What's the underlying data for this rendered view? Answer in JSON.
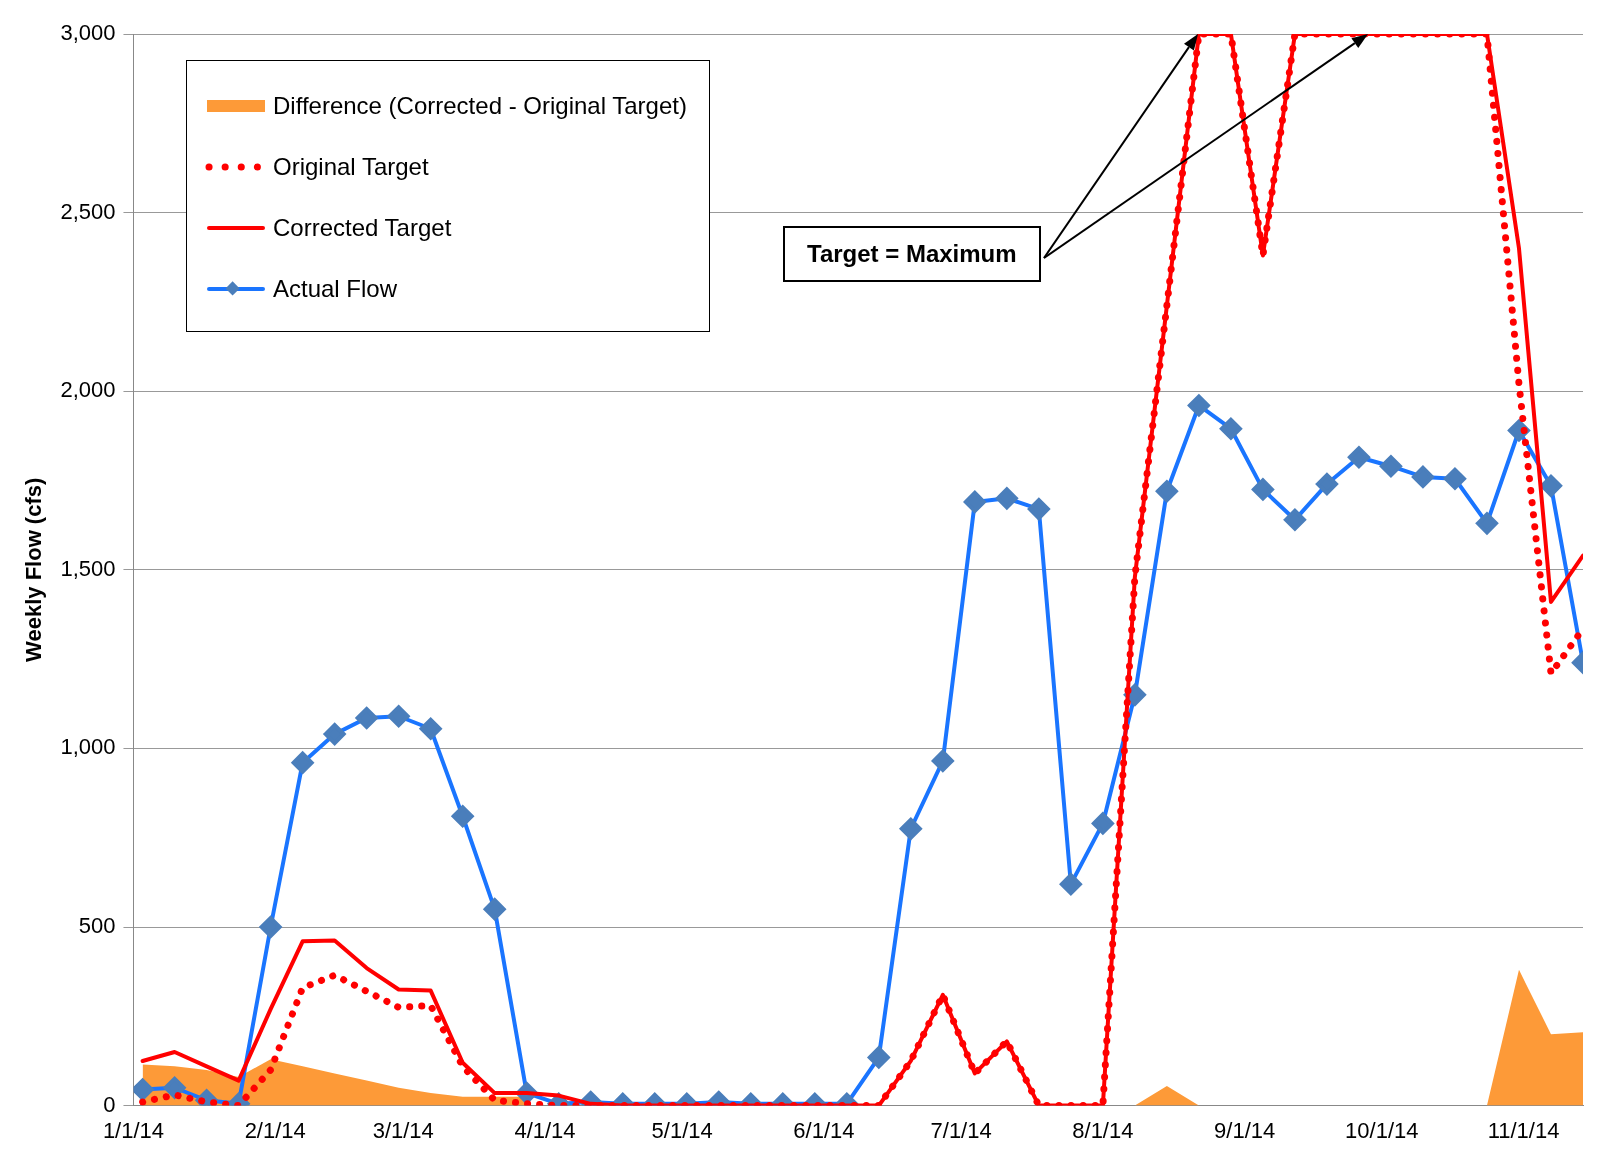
{
  "chart_data": {
    "type": "line",
    "ylabel": "Weekly Flow (cfs)",
    "x": [
      "2014-01-03",
      "2014-01-10",
      "2014-01-17",
      "2014-01-24",
      "2014-01-31",
      "2014-02-07",
      "2014-02-14",
      "2014-02-21",
      "2014-02-28",
      "2014-03-07",
      "2014-03-14",
      "2014-03-21",
      "2014-03-28",
      "2014-04-04",
      "2014-04-11",
      "2014-04-18",
      "2014-04-25",
      "2014-05-02",
      "2014-05-09",
      "2014-05-16",
      "2014-05-23",
      "2014-05-30",
      "2014-06-06",
      "2014-06-13",
      "2014-06-20",
      "2014-06-27",
      "2014-07-04",
      "2014-07-11",
      "2014-07-18",
      "2014-07-25",
      "2014-08-01",
      "2014-08-08",
      "2014-08-15",
      "2014-08-22",
      "2014-08-29",
      "2014-09-05",
      "2014-09-12",
      "2014-09-19",
      "2014-09-26",
      "2014-10-03",
      "2014-10-10",
      "2014-10-17",
      "2014-10-24",
      "2014-10-31",
      "2014-11-07",
      "2014-11-14"
    ],
    "series": [
      {
        "name": "Difference (Corrected - Original Target)",
        "type": "area",
        "color": "#fd9a38",
        "values": [
          115,
          110,
          100,
          80,
          130,
          110,
          90,
          70,
          50,
          35,
          25,
          25,
          25,
          null,
          null,
          null,
          null,
          null,
          null,
          null,
          null,
          null,
          null,
          0,
          0,
          0,
          0,
          0,
          0,
          0,
          0,
          0,
          55,
          0,
          0,
          0,
          0,
          0,
          0,
          0,
          0,
          0,
          0,
          380,
          200,
          205
        ]
      },
      {
        "name": "Original Target",
        "type": "line",
        "color": "#ff0000",
        "line_style": "dotted",
        "marker": "none",
        "values": [
          10,
          30,
          10,
          0,
          100,
          330,
          365,
          320,
          275,
          280,
          110,
          15,
          5,
          0,
          0,
          0,
          0,
          0,
          0,
          0,
          0,
          0,
          0,
          0,
          125,
          310,
          90,
          180,
          0,
          0,
          0,
          1480,
          2240,
          3000,
          3000,
          2380,
          3000,
          3000,
          3000,
          3000,
          3000,
          3000,
          3000,
          2020,
          1210,
          1335
        ]
      },
      {
        "name": "Corrected Target",
        "type": "line",
        "color": "#ff0000",
        "line_style": "solid",
        "marker": "none",
        "values": [
          125,
          150,
          110,
          70,
          270,
          460,
          462,
          385,
          325,
          322,
          120,
          35,
          35,
          28,
          5,
          0,
          0,
          0,
          0,
          0,
          0,
          0,
          0,
          0,
          125,
          310,
          90,
          180,
          0,
          0,
          0,
          1480,
          2240,
          3000,
          3000,
          2380,
          3000,
          3000,
          3000,
          3000,
          3000,
          3000,
          3000,
          2400,
          1410,
          1540
        ]
      },
      {
        "name": "Actual Flow",
        "type": "line",
        "color": "#1a75ff",
        "line_style": "solid",
        "marker": "diamond",
        "values": [
          45,
          50,
          15,
          5,
          500,
          960,
          1040,
          1085,
          1090,
          1055,
          810,
          550,
          35,
          5,
          10,
          5,
          5,
          5,
          10,
          5,
          5,
          5,
          5,
          135,
          775,
          965,
          1690,
          1700,
          1670,
          620,
          790,
          1150,
          1720,
          1960,
          1895,
          1725,
          1640,
          1740,
          1815,
          1790,
          1760,
          1755,
          1630,
          1890,
          1735,
          1240
        ]
      }
    ],
    "xlim": [
      "2014-01-01",
      "2014-11-14"
    ],
    "xticks": [
      {
        "value": "2014-01-01",
        "label": "1/1/14"
      },
      {
        "value": "2014-02-01",
        "label": "2/1/14"
      },
      {
        "value": "2014-03-01",
        "label": "3/1/14"
      },
      {
        "value": "2014-04-01",
        "label": "4/1/14"
      },
      {
        "value": "2014-05-01",
        "label": "5/1/14"
      },
      {
        "value": "2014-06-01",
        "label": "6/1/14"
      },
      {
        "value": "2014-07-01",
        "label": "7/1/14"
      },
      {
        "value": "2014-08-01",
        "label": "8/1/14"
      },
      {
        "value": "2014-09-01",
        "label": "9/1/14"
      },
      {
        "value": "2014-10-01",
        "label": "10/1/14"
      },
      {
        "value": "2014-11-01",
        "label": "11/1/14"
      }
    ],
    "ylim": [
      0,
      3000
    ],
    "yticks": [
      0,
      500,
      {
        "value": 1000,
        "label": "1,000"
      },
      {
        "value": 1500,
        "label": "1,500"
      },
      {
        "value": 2000,
        "label": "2,000"
      },
      {
        "value": 2500,
        "label": "2,500"
      },
      {
        "value": 3000,
        "label": "3,000"
      }
    ],
    "grid": "y",
    "legend": "top left",
    "annotations": [
      "Target = Maximum"
    ]
  }
}
